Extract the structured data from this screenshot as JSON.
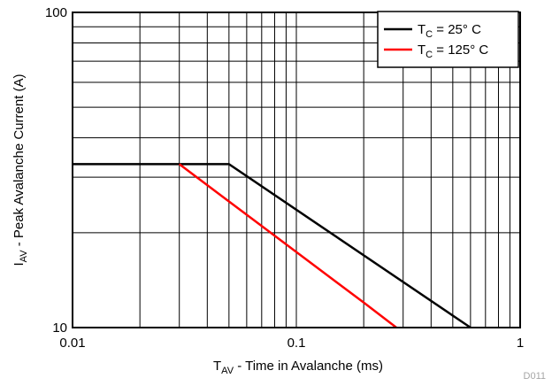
{
  "chart_data": {
    "type": "line",
    "xlabel": {
      "main": "T",
      "sub": "AV",
      "rest": " - Time in Avalanche (ms)"
    },
    "ylabel": {
      "main": "I",
      "sub": "AV",
      "rest": " - Peak Avalanche Current (A)"
    },
    "xscale": "log",
    "yscale": "log",
    "xlim": [
      0.01,
      1
    ],
    "ylim": [
      10,
      100
    ],
    "x_ticks": [
      "0.01",
      "0.1",
      "1"
    ],
    "y_ticks": [
      "10",
      "100"
    ],
    "grid": true,
    "legend_position": "top-right",
    "series": [
      {
        "name": {
          "main": "T",
          "sub": "C",
          "rest": " = 25° C"
        },
        "color": "#000000",
        "x": [
          0.01,
          0.05,
          0.6
        ],
        "y": [
          33,
          33,
          10
        ]
      },
      {
        "name": {
          "main": "T",
          "sub": "C",
          "rest": " = 125° C"
        },
        "color": "#ff0000",
        "x": [
          0.03,
          0.2,
          0.28
        ],
        "y": [
          33,
          12,
          10
        ]
      }
    ],
    "figure_id": "D011"
  }
}
